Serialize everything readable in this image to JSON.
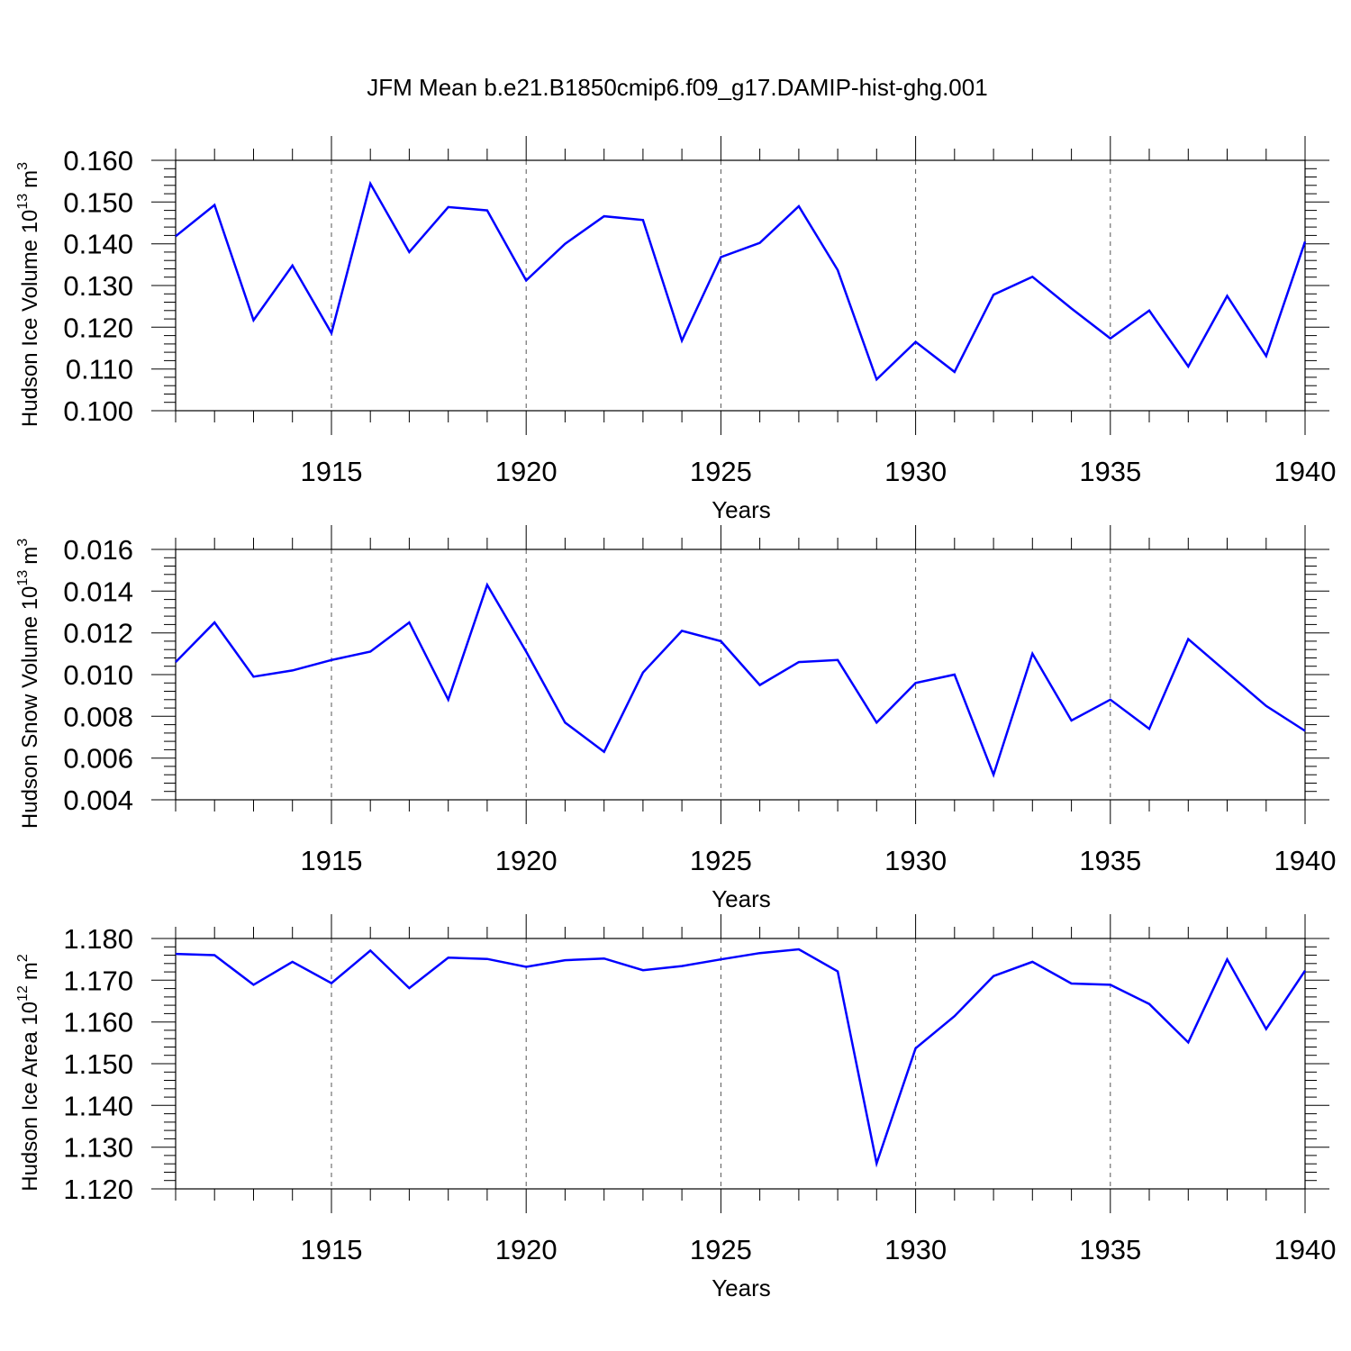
{
  "title": "JFM Mean b.e21.B1850cmip6.f09_g17.DAMIP-hist-ghg.001",
  "line_color": "#0000ff",
  "chart_data": [
    {
      "type": "line",
      "ylabel": "Hudson Ice Volume 10",
      "ylabel_exponent": "13",
      "ylabel_unit": "m",
      "ylabel_unit_power": "3",
      "xlabel": "Years",
      "xlim": [
        1911,
        1940
      ],
      "ylim": [
        0.1,
        0.16
      ],
      "x_ticks": [
        1915,
        1920,
        1925,
        1930,
        1935,
        1940
      ],
      "x_tick_labels": [
        "1915",
        "1920",
        "1925",
        "1930",
        "1935",
        "1940"
      ],
      "y_ticks": [
        0.1,
        0.11,
        0.12,
        0.13,
        0.14,
        0.15,
        0.16
      ],
      "y_tick_labels": [
        "0.100",
        "0.110",
        "0.120",
        "0.130",
        "0.140",
        "0.150",
        "0.160"
      ],
      "x": [
        1911,
        1912,
        1913,
        1914,
        1915,
        1916,
        1917,
        1918,
        1919,
        1920,
        1921,
        1922,
        1923,
        1924,
        1925,
        1926,
        1927,
        1928,
        1929,
        1930,
        1931,
        1932,
        1933,
        1934,
        1935,
        1936,
        1937,
        1938,
        1939,
        1940
      ],
      "values": [
        0.1418,
        0.1493,
        0.1217,
        0.1348,
        0.1186,
        0.1544,
        0.138,
        0.1488,
        0.148,
        0.1312,
        0.14,
        0.1466,
        0.1457,
        0.1168,
        0.1368,
        0.1402,
        0.149,
        0.1337,
        0.1075,
        0.1165,
        0.1093,
        0.1278,
        0.1321,
        0.1245,
        0.1173,
        0.124,
        0.1106,
        0.1275,
        0.1131,
        0.1405
      ]
    },
    {
      "type": "line",
      "ylabel": "Hudson Snow Volume 10",
      "ylabel_exponent": "13",
      "ylabel_unit": "m",
      "ylabel_unit_power": "3",
      "xlabel": "Years",
      "xlim": [
        1911,
        1940
      ],
      "ylim": [
        0.004,
        0.016
      ],
      "x_ticks": [
        1915,
        1920,
        1925,
        1930,
        1935,
        1940
      ],
      "x_tick_labels": [
        "1915",
        "1920",
        "1925",
        "1930",
        "1935",
        "1940"
      ],
      "y_ticks": [
        0.004,
        0.006,
        0.008,
        0.01,
        0.012,
        0.014,
        0.016
      ],
      "y_tick_labels": [
        "0.004",
        "0.006",
        "0.008",
        "0.010",
        "0.012",
        "0.014",
        "0.016"
      ],
      "x": [
        1911,
        1912,
        1913,
        1914,
        1915,
        1916,
        1917,
        1918,
        1919,
        1920,
        1921,
        1922,
        1923,
        1924,
        1925,
        1926,
        1927,
        1928,
        1929,
        1930,
        1931,
        1932,
        1933,
        1934,
        1935,
        1936,
        1937,
        1938,
        1939,
        1940
      ],
      "values": [
        0.0106,
        0.0125,
        0.0099,
        0.0102,
        0.0107,
        0.0111,
        0.0125,
        0.0088,
        0.0143,
        0.0111,
        0.0077,
        0.0063,
        0.0101,
        0.0121,
        0.0116,
        0.0095,
        0.0106,
        0.0107,
        0.0077,
        0.0096,
        0.01,
        0.0052,
        0.011,
        0.0078,
        0.0088,
        0.0074,
        0.0117,
        0.0101,
        0.0085,
        0.0073
      ]
    },
    {
      "type": "line",
      "ylabel": "Hudson Ice Area 10",
      "ylabel_exponent": "12",
      "ylabel_unit": "m",
      "ylabel_unit_power": "2",
      "xlabel": "Years",
      "xlim": [
        1911,
        1940
      ],
      "ylim": [
        1.12,
        1.18
      ],
      "x_ticks": [
        1915,
        1920,
        1925,
        1930,
        1935,
        1940
      ],
      "x_tick_labels": [
        "1915",
        "1920",
        "1925",
        "1930",
        "1935",
        "1940"
      ],
      "y_ticks": [
        1.12,
        1.13,
        1.14,
        1.15,
        1.16,
        1.17,
        1.18
      ],
      "y_tick_labels": [
        "1.120",
        "1.130",
        "1.140",
        "1.150",
        "1.160",
        "1.170",
        "1.180"
      ],
      "x": [
        1911,
        1912,
        1913,
        1914,
        1915,
        1916,
        1917,
        1918,
        1919,
        1920,
        1921,
        1922,
        1923,
        1924,
        1925,
        1926,
        1927,
        1928,
        1929,
        1930,
        1931,
        1932,
        1933,
        1934,
        1935,
        1936,
        1937,
        1938,
        1939,
        1940
      ],
      "values": [
        1.1763,
        1.176,
        1.1689,
        1.1744,
        1.1693,
        1.1771,
        1.1681,
        1.1754,
        1.1751,
        1.1732,
        1.1748,
        1.1752,
        1.1724,
        1.1734,
        1.175,
        1.1765,
        1.1774,
        1.1721,
        1.1261,
        1.1537,
        1.1614,
        1.171,
        1.1744,
        1.1692,
        1.1689,
        1.1643,
        1.1551,
        1.175,
        1.1583,
        1.1723
      ]
    }
  ]
}
